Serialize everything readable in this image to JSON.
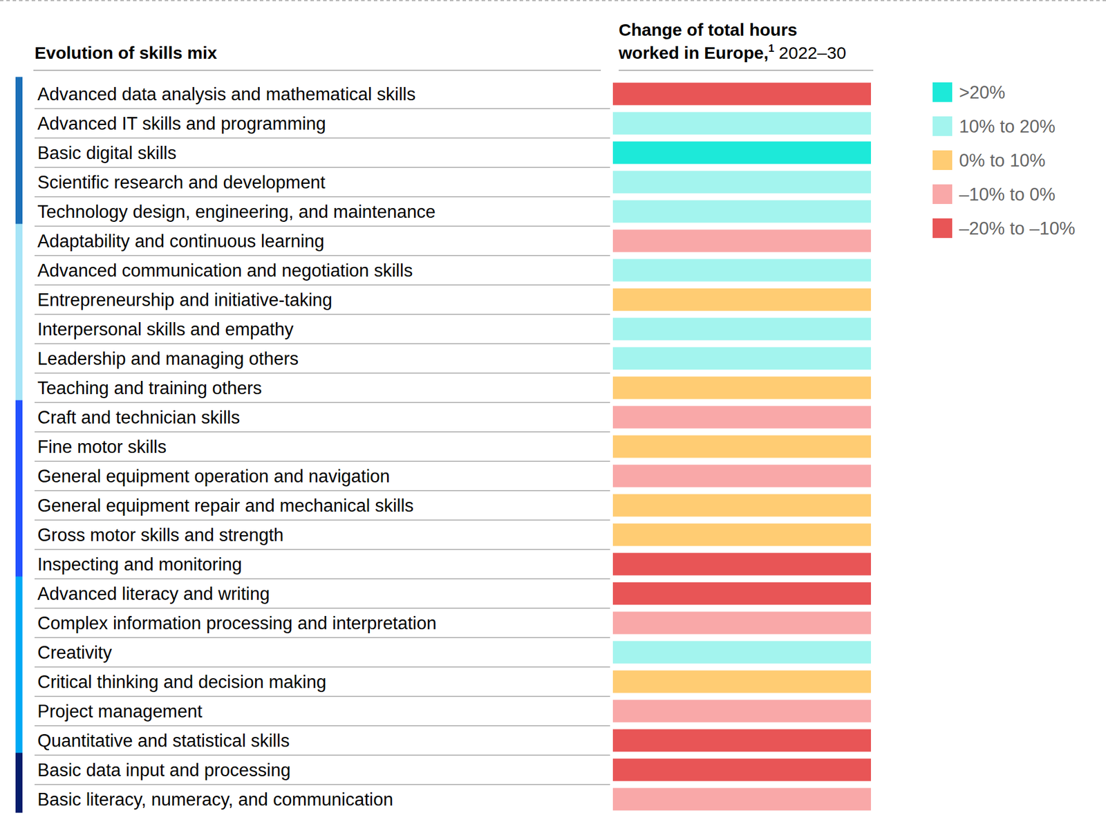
{
  "chart_data": {
    "type": "heatmap",
    "title": "Evolution of skills mix",
    "value_title": [
      "Change of total hours",
      "worked in Europe,"
    ],
    "footnote": "1",
    "period": "2022–30",
    "series": [
      {
        "name": ">20%",
        "color": "#1de9d9"
      },
      {
        "name": "10% to 20%",
        "color": "#a3f4ee"
      },
      {
        "name": "0% to 10%",
        "color": "#ffcc73"
      },
      {
        "name": "–10% to 0%",
        "color": "#f9a8a8"
      },
      {
        "name": "–20% to –10%",
        "color": "#e85556"
      }
    ],
    "groups": [
      {
        "color": "#1a6fb8",
        "categories": [
          "Advanced data analysis and mathematical skills",
          "Advanced IT skills and programming",
          "Basic digital skills",
          "Scientific research and development",
          "Technology design, engineering, and maintenance"
        ],
        "values": [
          "–20% to –10%",
          "10% to 20%",
          ">20%",
          "10% to 20%",
          "10% to 20%"
        ]
      },
      {
        "color": "#a6e4f7",
        "categories": [
          "Adaptability and continuous learning",
          "Advanced communication and negotiation skills",
          "Entrepreneurship and initiative-taking",
          "Interpersonal skills and empathy",
          "Leadership and managing others",
          "Teaching and training others"
        ],
        "values": [
          "–10% to 0%",
          "10% to 20%",
          "0% to 10%",
          "10% to 20%",
          "10% to 20%",
          "0% to 10%"
        ]
      },
      {
        "color": "#2251ff",
        "categories": [
          "Craft and technician skills",
          "Fine motor skills",
          "General equipment operation and navigation",
          "General equipment repair and mechanical skills",
          "Gross motor skills and strength",
          "Inspecting and monitoring"
        ],
        "values": [
          "–10% to 0%",
          "0% to 10%",
          "–10% to 0%",
          "0% to 10%",
          "0% to 10%",
          "–20% to –10%"
        ]
      },
      {
        "color": "#00a9f4",
        "categories": [
          "Advanced literacy and writing",
          "Complex information processing and interpretation",
          "Creativity",
          "Critical thinking and decision making",
          "Project management",
          "Quantitative and statistical skills"
        ],
        "values": [
          "–20% to –10%",
          "–10% to 0%",
          "10% to 20%",
          "0% to 10%",
          "–10% to 0%",
          "–20% to –10%"
        ]
      },
      {
        "color": "#051c6b",
        "categories": [
          "Basic data input and processing",
          "Basic literacy, numeracy, and communication"
        ],
        "values": [
          "–20% to –10%",
          "–10% to 0%"
        ]
      }
    ]
  }
}
